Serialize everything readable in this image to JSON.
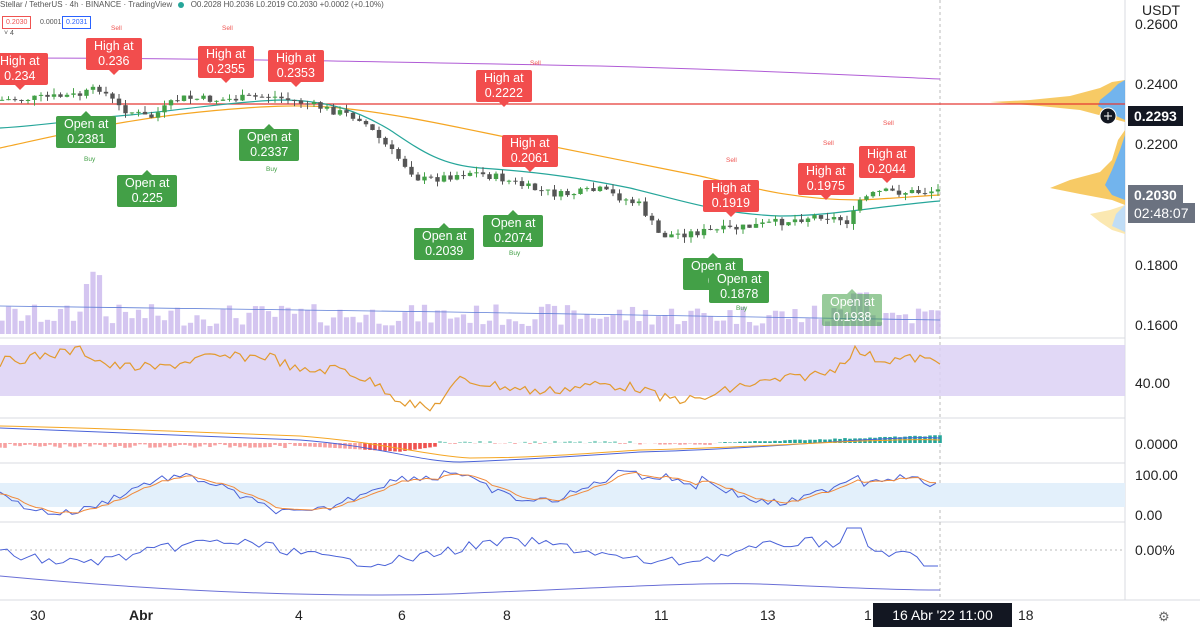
{
  "header": {
    "symbol": "Stellar / TetherUS · 4h · BINANCE · TradingView",
    "ohlc": "O0.2028  H0.2036  L0.2019  C0.2030  +0.0002 (+0.10%)",
    "chip_red": "0.2030",
    "chip_gray": "0.0001",
    "chip_blue": "0.2031",
    "collapse": "˅ 4"
  },
  "currency": "USDT",
  "price_axis": [
    "0.2600",
    "0.2400",
    "0.2200",
    "0.1800",
    "0.1600"
  ],
  "last_price": "0.2293",
  "current_price": "0.2030",
  "countdown": "02:48:07",
  "rsi_axis": "40.00",
  "macd_axis": "0.0000",
  "stoch_axis": [
    "100.00",
    "0.00"
  ],
  "roc_axis": "0.00%",
  "annotations": {
    "highs": [
      "High at\n0.234",
      "High at\n0.236",
      "High at\n0.2355",
      "High at\n0.2353",
      "High at\n0.2222",
      "High at\n0.2061",
      "High at\n0.1919",
      "High at\n0.1975",
      "High at\n0.2044"
    ],
    "opens": [
      "Open at\n0.2381",
      "Open at\n0.225",
      "Open at\n0.2337",
      "Open at\n0.2039",
      "Open at\n0.2074",
      "Open at\n0.",
      "Open at\n0.1878",
      "Open at\n0.1938"
    ],
    "sell": "Sell",
    "buy": "Buy"
  },
  "x_axis": [
    "30",
    "Abr",
    "4",
    "6",
    "8",
    "11",
    "13",
    "1",
    "18"
  ],
  "crosshair_date": "16 Abr '22   11:00",
  "colors": {
    "bull": "#43a047",
    "bear": "#555555",
    "high_tag": "#f24d4d",
    "open_tag": "#43a047",
    "ema_fast": "#26a69a",
    "ema_slow": "#f5a623",
    "sma_long": "#b05cd6",
    "resistance": "#e53935",
    "volume": "#c9b6ec",
    "rsi_band": "#dcd1f5",
    "rsi_line": "#e39a2e",
    "stoch_band": "#e3f0fb",
    "macd_line": "#4a62d8"
  }
}
